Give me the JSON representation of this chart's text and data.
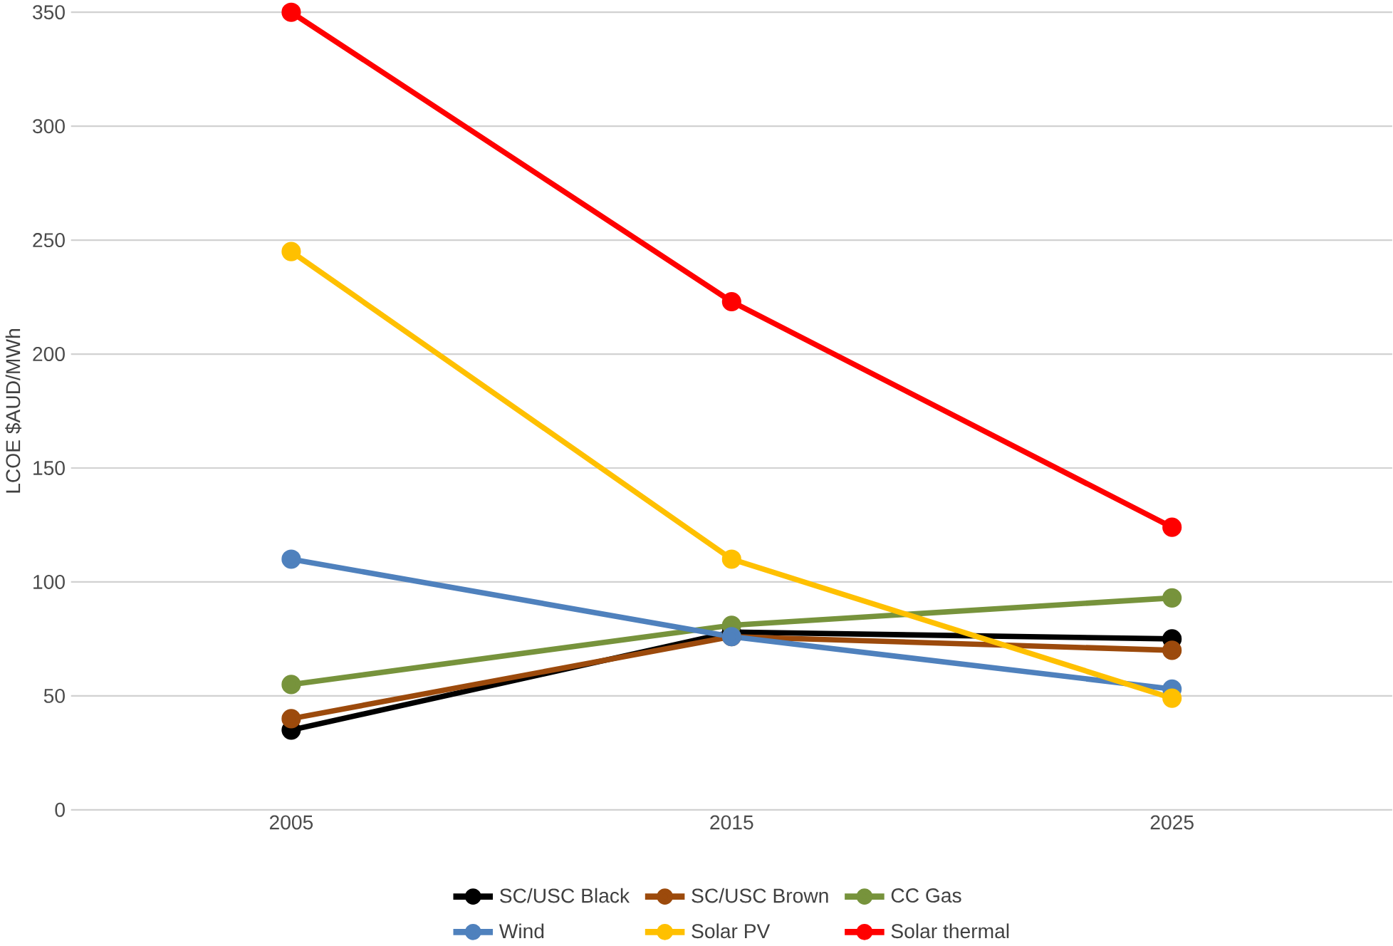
{
  "chart_data": {
    "type": "line",
    "ylabel": "LCOE $AUD/MWh",
    "categories": [
      "2005",
      "2015",
      "2025"
    ],
    "series": [
      {
        "name": "SC/USC Black",
        "color": "#000000",
        "values": [
          35,
          78,
          75
        ]
      },
      {
        "name": "SC/USC Brown",
        "color": "#9c4a0c",
        "values": [
          40,
          76,
          70
        ]
      },
      {
        "name": "CC Gas",
        "color": "#77933c",
        "values": [
          55,
          81,
          93
        ]
      },
      {
        "name": "Wind",
        "color": "#4f81bd",
        "values": [
          110,
          76,
          53
        ]
      },
      {
        "name": "Solar PV",
        "color": "#ffc000",
        "values": [
          245,
          110,
          49
        ]
      },
      {
        "name": "Solar thermal",
        "color": "#ff0000",
        "values": [
          350,
          223,
          124
        ]
      }
    ],
    "ylim": [
      0,
      350
    ],
    "yticks": [
      0,
      50,
      100,
      150,
      200,
      250,
      300,
      350
    ],
    "grid": "y",
    "legend": "bottom",
    "marker": "circle",
    "line_style": "solid"
  }
}
